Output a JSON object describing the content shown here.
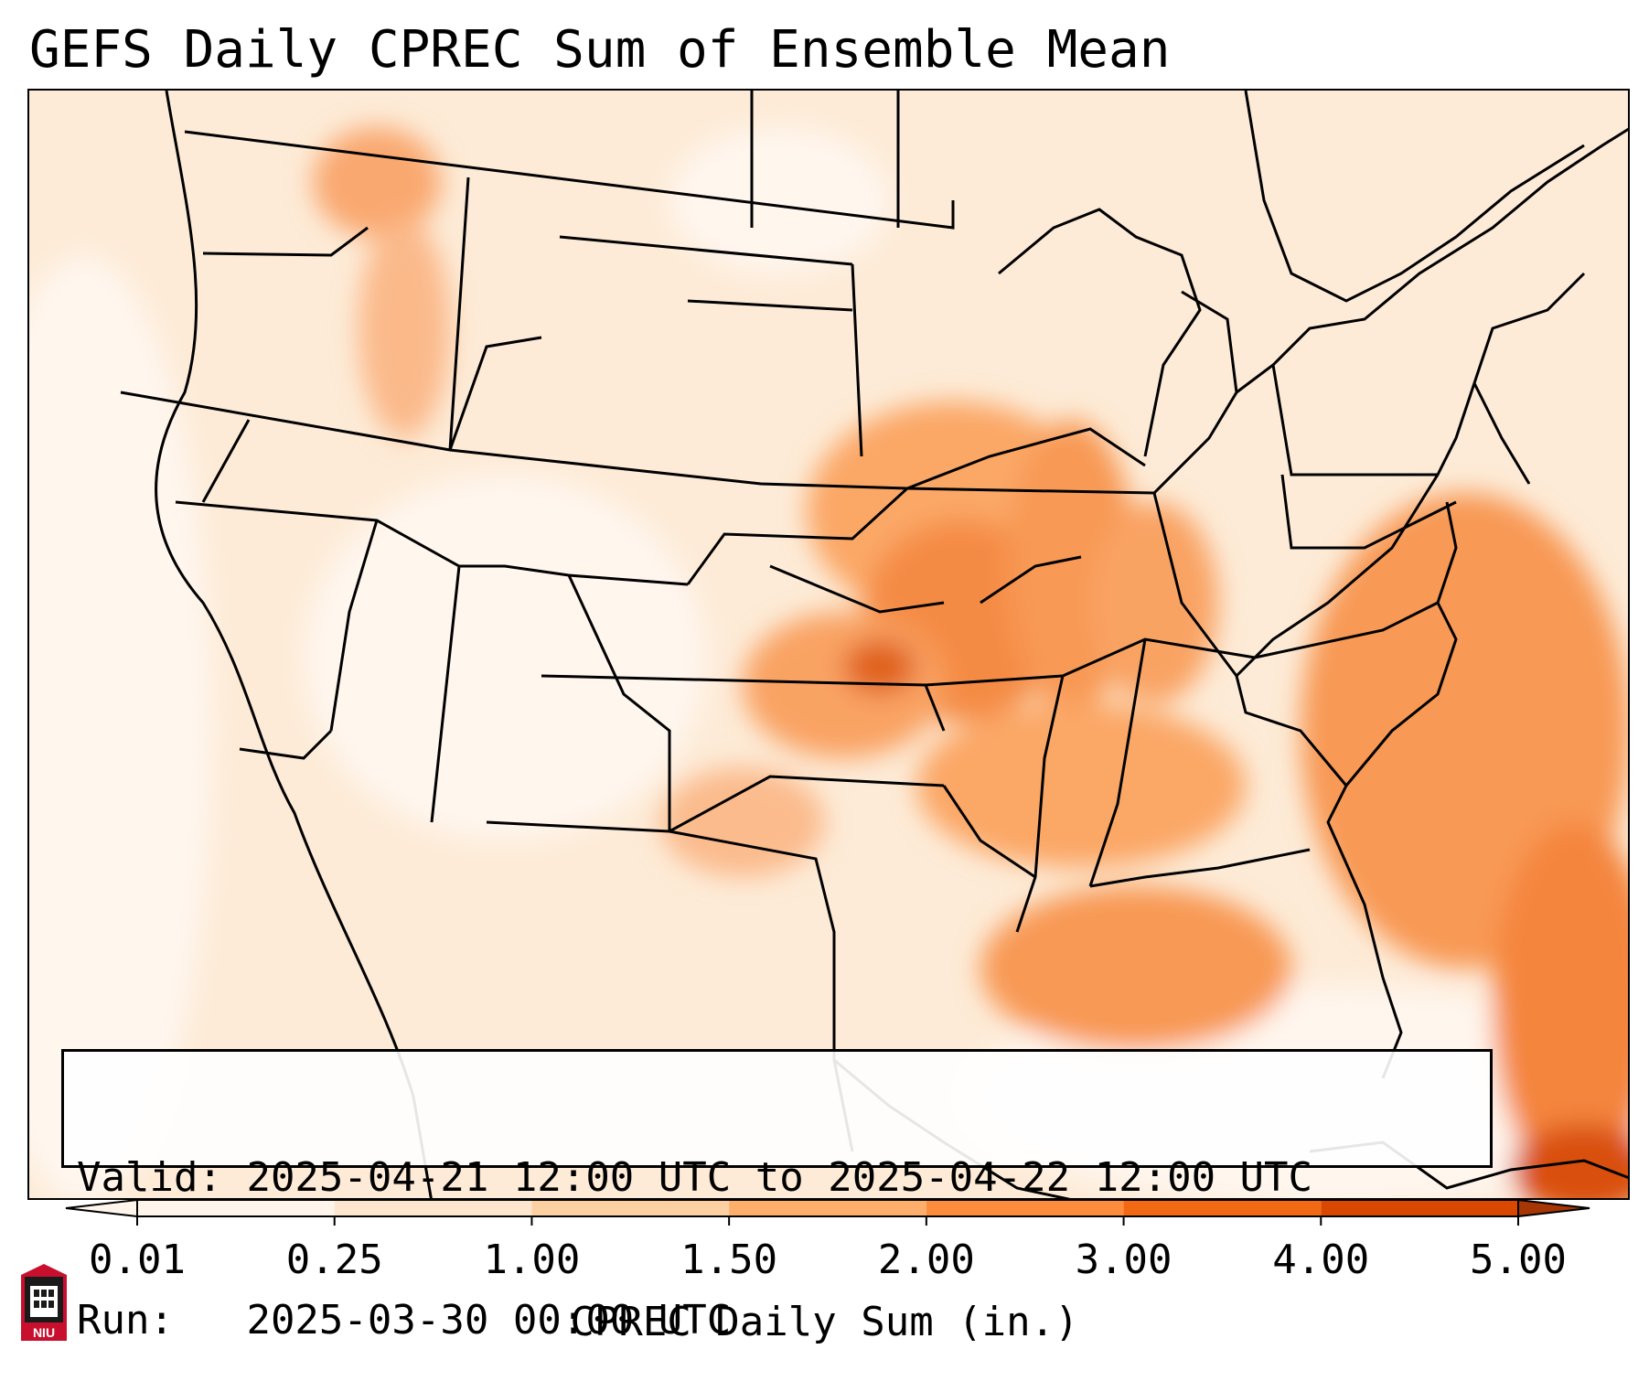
{
  "title": "GEFS Daily CPREC Sum of Ensemble Mean",
  "info": {
    "valid_label": "Valid:",
    "valid_value": "2025-04-21 12:00 UTC to 2025-04-22 12:00 UTC",
    "run_label": "Run:",
    "run_value": "2025-03-30 00:00 UTC"
  },
  "colorbar": {
    "label": "CPREC Daily Sum (in.)",
    "ticks": [
      "0.01",
      "0.25",
      "1.00",
      "1.50",
      "2.00",
      "3.00",
      "4.00",
      "5.00"
    ],
    "colors": [
      "#fff5eb",
      "#fee6ce",
      "#fdd0a2",
      "#fdae6b",
      "#fd8d3c",
      "#f16913",
      "#d94801",
      "#a63603"
    ]
  },
  "logo": {
    "text": "NIU"
  }
}
